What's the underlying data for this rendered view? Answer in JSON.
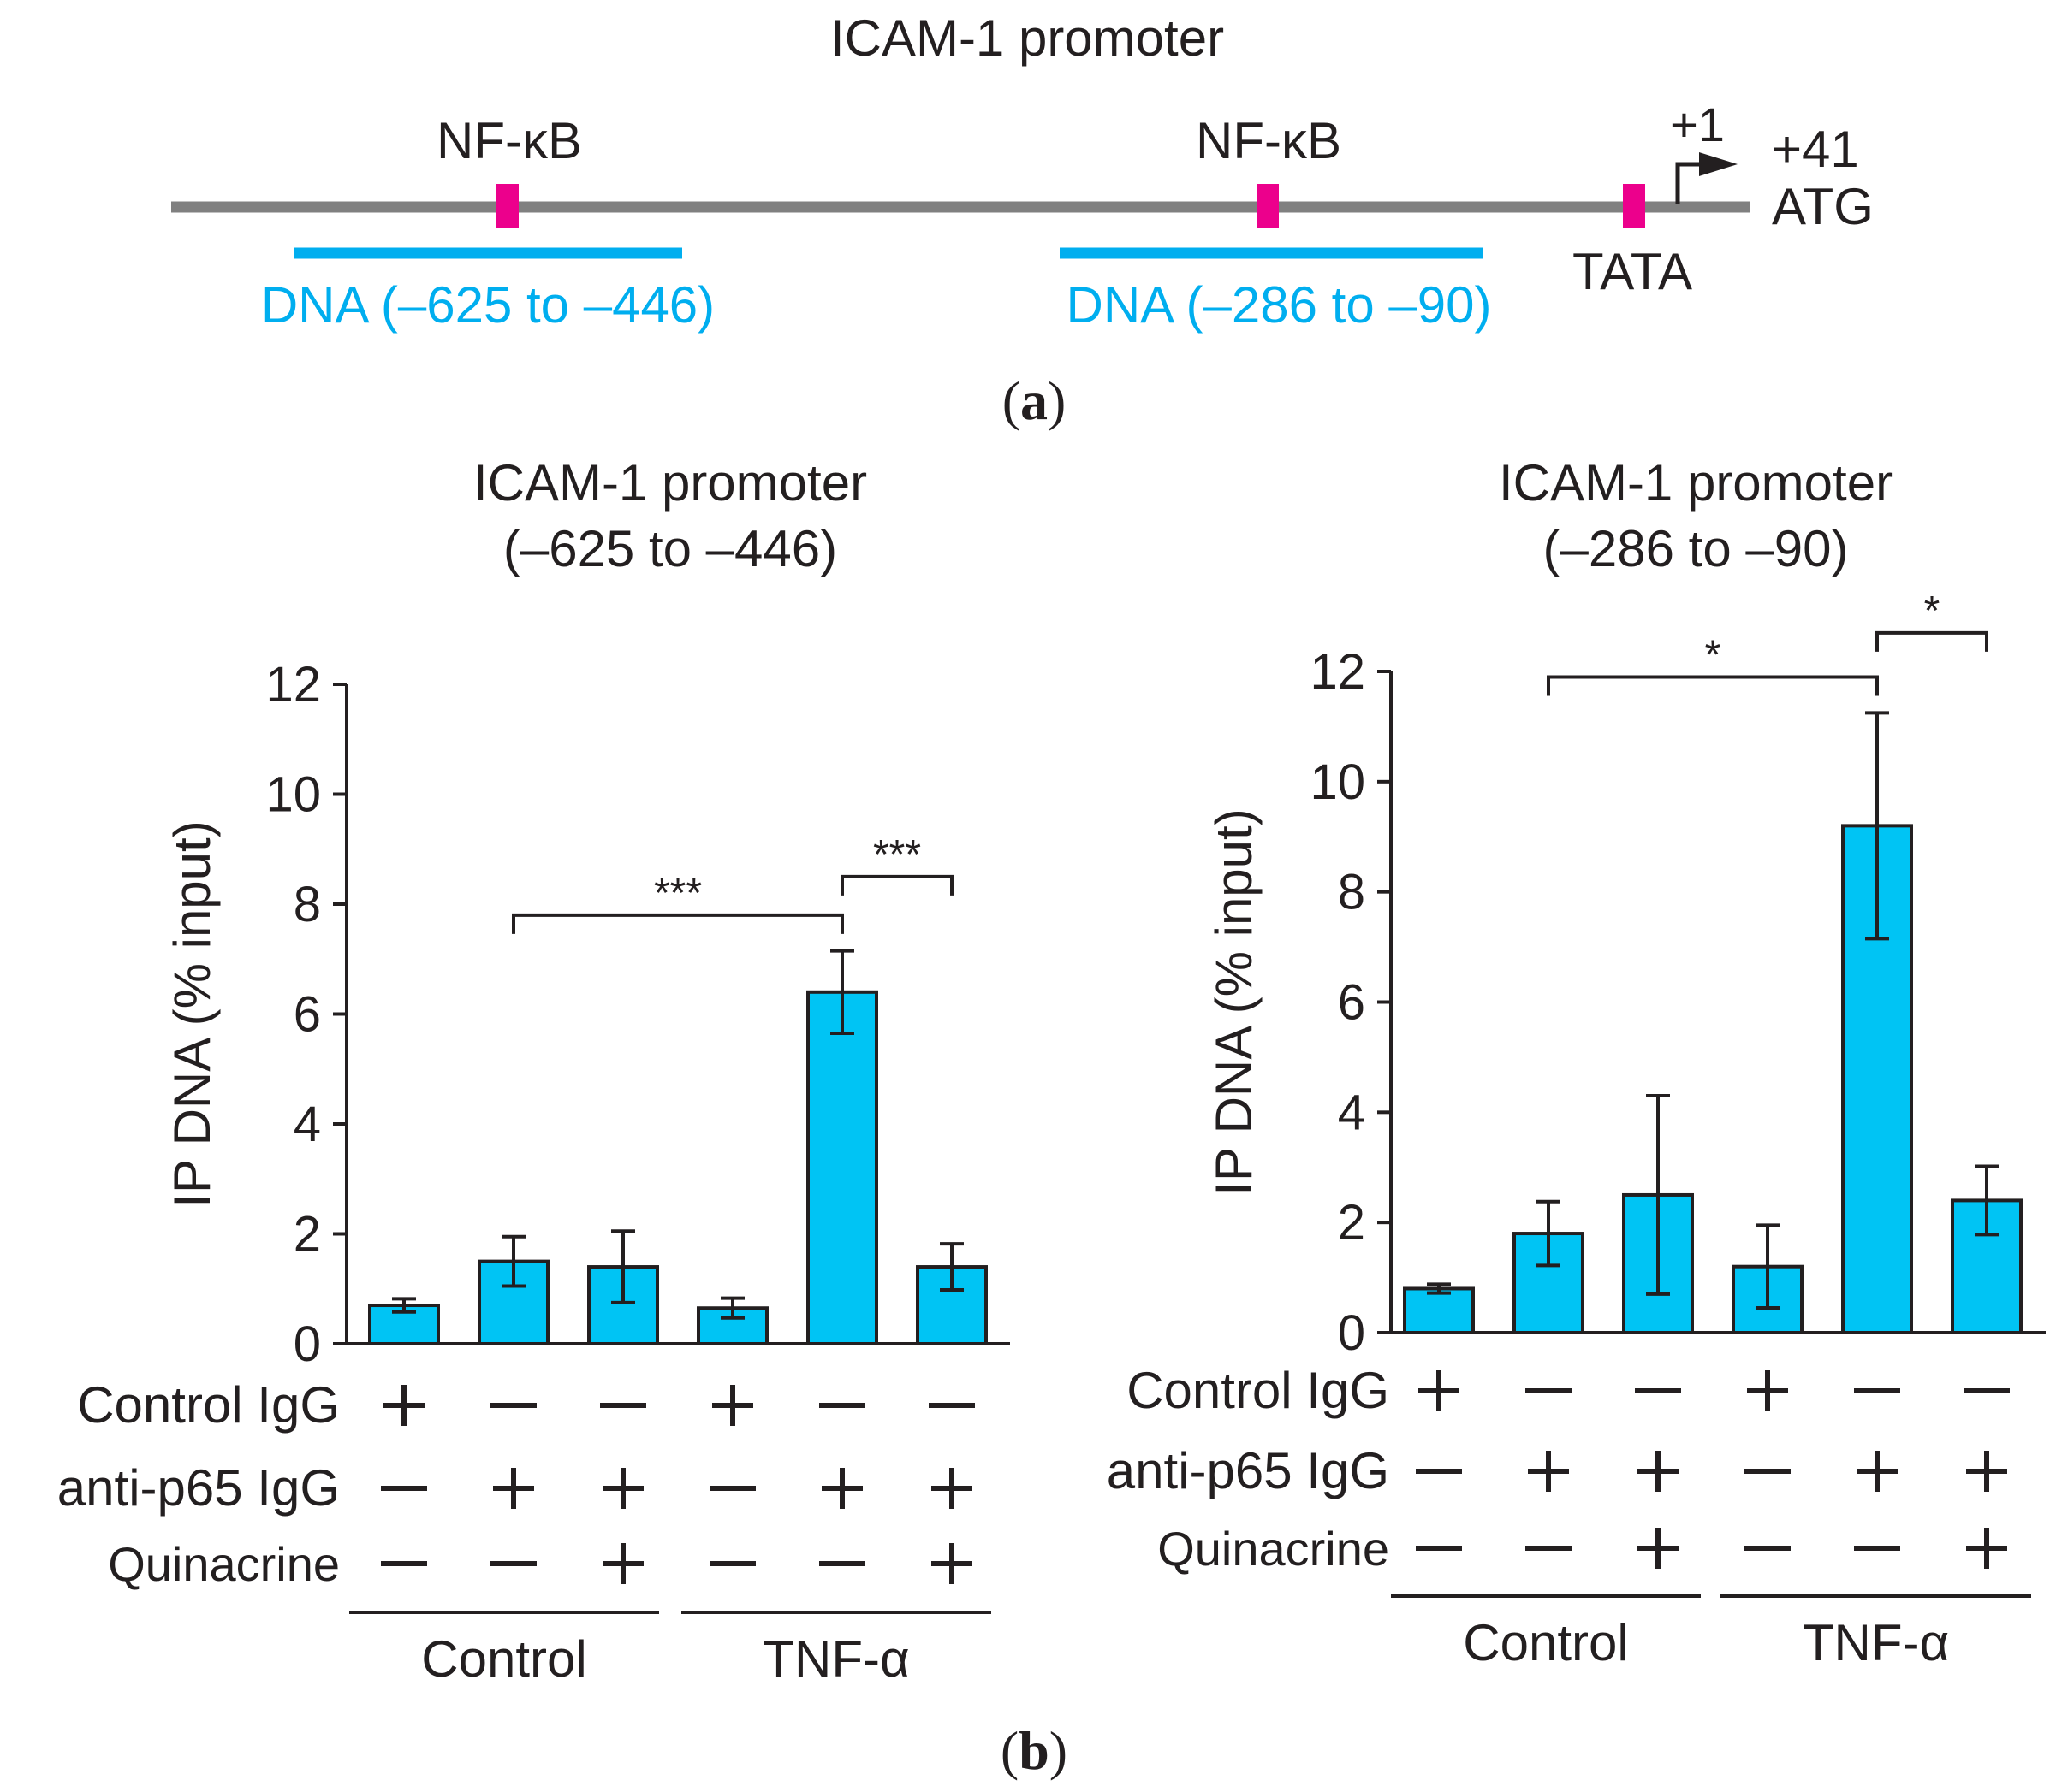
{
  "panel_a": {
    "title": "ICAM-1 promoter",
    "nfkb_left": "NF-κB",
    "nfkb_right": "NF-κB",
    "tata": "TATA",
    "tss": "+1",
    "atg_pos": "+41",
    "atg": "ATG",
    "dna_left": "DNA (–625 to –446)",
    "dna_right": "DNA (–286 to –90)",
    "label": "a",
    "colors": {
      "line": "#808080",
      "site": "#ec008c",
      "dna": "#00aeef"
    }
  },
  "panel_b": {
    "label": "b"
  },
  "chart_data": [
    {
      "type": "bar",
      "title": "ICAM-1 promoter",
      "subtitle": "(–625 to –446)",
      "ylabel": "IP DNA (% input)",
      "xlabel": "",
      "ylim": [
        0,
        12
      ],
      "yticks": [
        "0",
        "2",
        "4",
        "6",
        "8",
        "10",
        "12"
      ],
      "values": [
        0.7,
        1.5,
        1.4,
        0.65,
        6.4,
        1.4
      ],
      "errors": [
        0.12,
        0.45,
        0.65,
        0.18,
        0.75,
        0.42
      ],
      "color": "#00c4f4",
      "rows": [
        {
          "label": "Control IgG",
          "signs": [
            "+",
            "–",
            "–",
            "+",
            "–",
            "–"
          ]
        },
        {
          "label": "anti-p65 IgG",
          "signs": [
            "–",
            "+",
            "+",
            "–",
            "+",
            "+"
          ]
        },
        {
          "label": "Quinacrine",
          "signs": [
            "–",
            "–",
            "+",
            "–",
            "–",
            "+"
          ]
        }
      ],
      "groups": [
        "Control",
        "TNF-α"
      ],
      "brackets": [
        {
          "from": 1,
          "to": 4,
          "level": 7.8,
          "label": "***"
        },
        {
          "from": 4,
          "to": 5,
          "level": 8.5,
          "label": "***"
        }
      ]
    },
    {
      "type": "bar",
      "title": "ICAM-1 promoter",
      "subtitle": "(–286 to –90)",
      "ylabel": "IP DNA (% input)",
      "xlabel": "",
      "ylim": [
        0,
        12
      ],
      "yticks": [
        "0",
        "2",
        "4",
        "6",
        "8",
        "10",
        "12"
      ],
      "values": [
        0.8,
        1.8,
        2.5,
        1.2,
        9.2,
        2.4
      ],
      "errors": [
        0.08,
        0.58,
        1.8,
        0.75,
        2.05,
        0.62
      ],
      "color": "#00c4f4",
      "rows": [
        {
          "label": "Control IgG",
          "signs": [
            "+",
            "–",
            "–",
            "+",
            "–",
            "–"
          ]
        },
        {
          "label": "anti-p65 IgG",
          "signs": [
            "–",
            "+",
            "+",
            "–",
            "+",
            "+"
          ]
        },
        {
          "label": "Quinacrine",
          "signs": [
            "–",
            "–",
            "+",
            "–",
            "–",
            "+"
          ]
        }
      ],
      "groups": [
        "Control",
        "TNF-α"
      ],
      "brackets": [
        {
          "from": 1,
          "to": 4,
          "level": 11.9,
          "label": "*"
        },
        {
          "from": 4,
          "to": 5,
          "level": 12.7,
          "label": "*"
        }
      ]
    }
  ]
}
